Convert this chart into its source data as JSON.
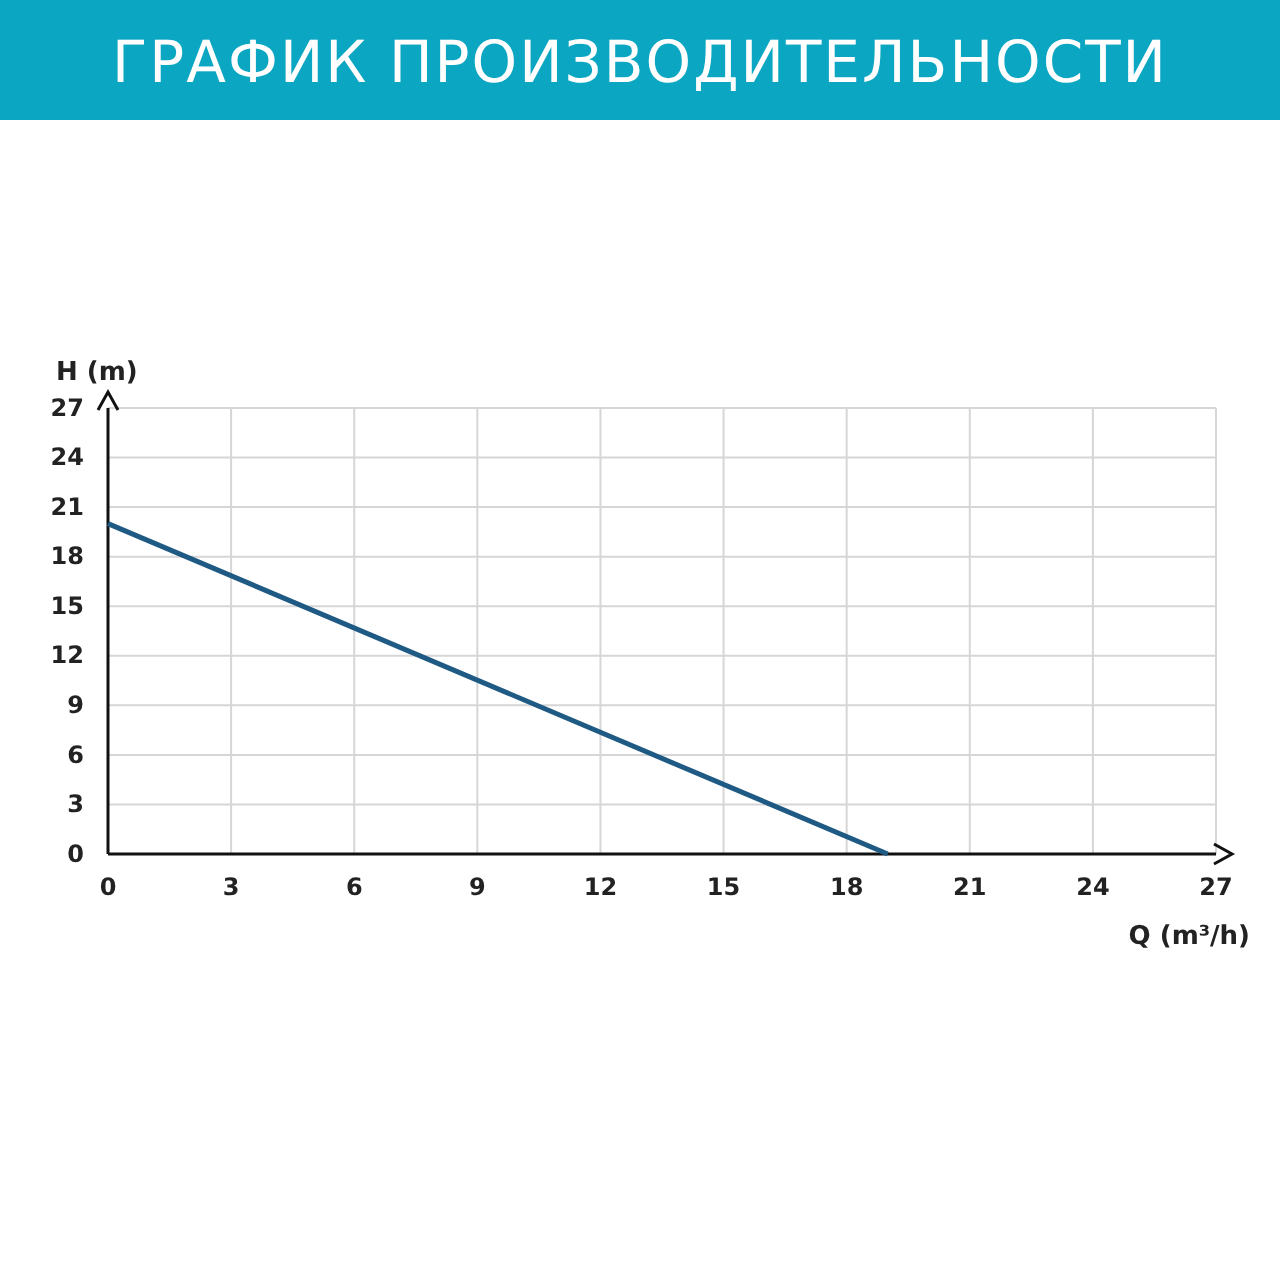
{
  "chart_data": {
    "type": "line",
    "title": "ГРАФИК ПРОИЗВОДИТЕЛЬНОСТИ",
    "xlabel": "Q (m³/h)",
    "ylabel": "H (m)",
    "x": [
      0,
      19
    ],
    "series": [
      {
        "color": "#1f5a85",
        "values": [
          20,
          0
        ]
      }
    ],
    "xlim": [
      0,
      27
    ],
    "xticks": [
      0,
      3,
      6,
      9,
      12,
      15,
      18,
      21,
      24,
      27
    ],
    "ylim": [
      0,
      27
    ],
    "yticks": [
      0,
      3,
      6,
      9,
      12,
      15,
      18,
      21,
      24,
      27
    ],
    "grid": true,
    "marker": "none",
    "line_style": "solid"
  }
}
